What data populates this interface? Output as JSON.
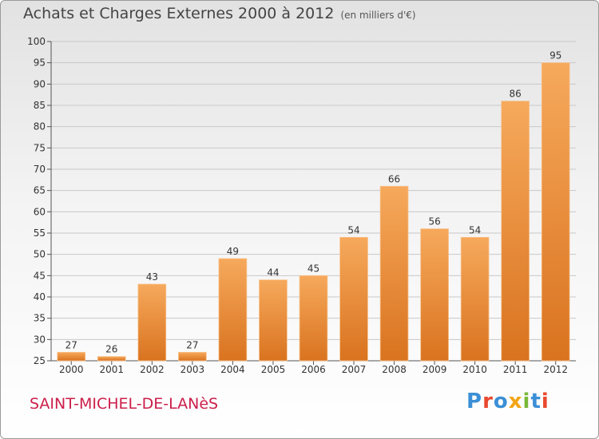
{
  "header": {
    "title": "Achats et Charges Externes 2000 à 2012",
    "unit": "(en milliers d'€)"
  },
  "footer": {
    "commune": "SAINT-MICHEL-DE-LANèS",
    "logo_text": "Proxiti",
    "logo_colors": [
      "#3b8fd6",
      "#e8492f",
      "#3b8fd6",
      "#f2a516",
      "#7ab83b",
      "#3b8fd6",
      "#e8492f"
    ]
  },
  "colors": {
    "bar_top": "#f6a95c",
    "bar_bottom": "#d9731f",
    "grid": "#c8c8c8",
    "commune": "#cc1e4b"
  },
  "chart_data": {
    "type": "bar",
    "title": "Achats et Charges Externes 2000 à 2012",
    "subtitle": "(en milliers d'€)",
    "categories": [
      "2000",
      "2001",
      "2002",
      "2003",
      "2004",
      "2005",
      "2006",
      "2007",
      "2008",
      "2009",
      "2010",
      "2011",
      "2012"
    ],
    "values": [
      27,
      26,
      43,
      27,
      49,
      44,
      45,
      54,
      66,
      56,
      54,
      86,
      95
    ],
    "ylim": [
      25,
      100
    ],
    "yticks": [
      25,
      30,
      35,
      40,
      45,
      50,
      55,
      60,
      65,
      70,
      75,
      80,
      85,
      90,
      95,
      100
    ],
    "grid": true,
    "xlabel": "",
    "ylabel": ""
  }
}
